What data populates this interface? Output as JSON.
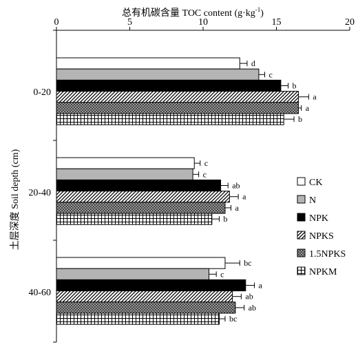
{
  "chart_data": {
    "type": "bar",
    "orientation": "horizontal",
    "title": "",
    "xlabel": "总有机碳含量 TOC content (g·kg",
    "xlabel_superscript": "-1",
    "xlabel_suffix": ")",
    "ylabel": "土层深度 Soil depth (cm)",
    "xlim": [
      0,
      20
    ],
    "x_ticks": [
      "0",
      "5",
      "10",
      "15",
      "20"
    ],
    "x_axis_position": "top",
    "grid": false,
    "legend_position": "right",
    "categories": [
      "0-20",
      "20-40",
      "40-60"
    ],
    "series": [
      {
        "name": "CK",
        "values": [
          12.5,
          9.4,
          11.5
        ],
        "errors": [
          0.5,
          0.4,
          1.0
        ],
        "letters": [
          "d",
          "c",
          "bc"
        ],
        "pattern": "white"
      },
      {
        "name": "N",
        "values": [
          13.8,
          9.3,
          10.4
        ],
        "errors": [
          0.4,
          0.4,
          0.5
        ],
        "letters": [
          "c",
          "c",
          "c"
        ],
        "pattern": "gray"
      },
      {
        "name": "NPK",
        "values": [
          15.3,
          11.2,
          12.9
        ],
        "errors": [
          0.5,
          0.5,
          0.6
        ],
        "letters": [
          "b",
          "ab",
          "a"
        ],
        "pattern": "black"
      },
      {
        "name": "NPKS",
        "values": [
          16.5,
          11.8,
          12.0
        ],
        "errors": [
          0.7,
          0.6,
          0.6
        ],
        "letters": [
          "a",
          "a",
          "ab"
        ],
        "pattern": "diagonal"
      },
      {
        "name": "1.5NPKS",
        "values": [
          16.5,
          11.5,
          12.2
        ],
        "errors": [
          0.2,
          0.4,
          0.6
        ],
        "letters": [
          "a",
          "a",
          "ab"
        ],
        "pattern": "crosshatch"
      },
      {
        "name": "NPKM",
        "values": [
          15.5,
          10.6,
          11.1
        ],
        "errors": [
          0.7,
          0.5,
          0.4
        ],
        "letters": [
          "b",
          "b",
          "bc"
        ],
        "pattern": "grid"
      }
    ]
  }
}
